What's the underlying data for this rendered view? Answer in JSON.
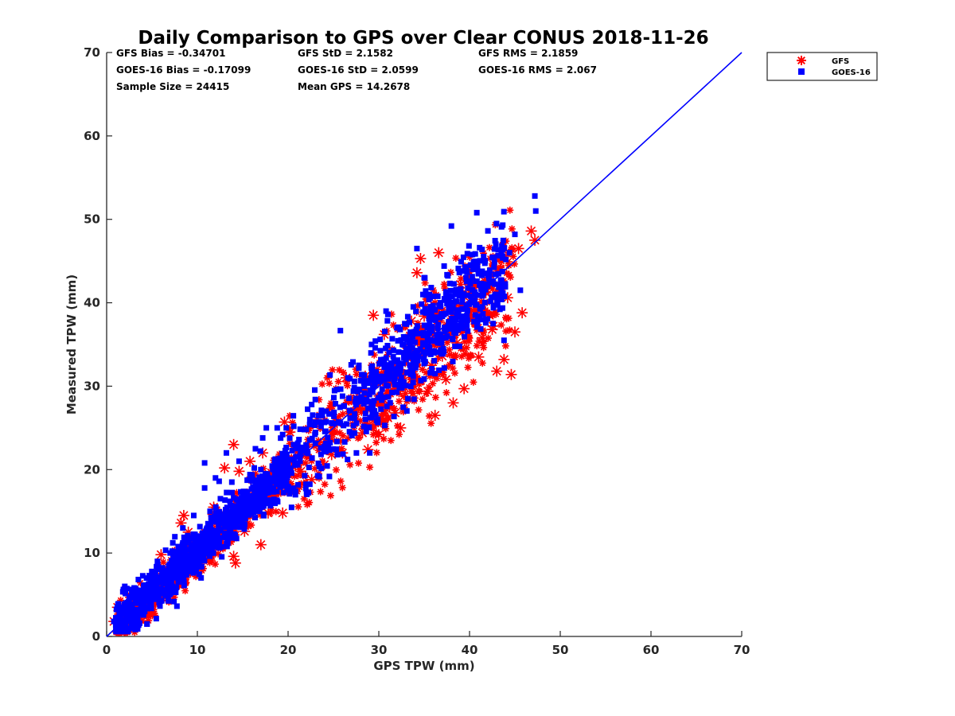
{
  "chart_data": {
    "type": "scatter",
    "title": "Daily Comparison to GPS over Clear CONUS 2018-11-26",
    "xlabel": "GPS TPW (mm)",
    "ylabel": "Measured TPW (mm)",
    "xlim": [
      0,
      70
    ],
    "ylim": [
      0,
      70
    ],
    "xticks": [
      "0",
      "10",
      "20",
      "30",
      "40",
      "50",
      "60",
      "70"
    ],
    "yticks": [
      "0",
      "10",
      "20",
      "30",
      "40",
      "50",
      "60",
      "70"
    ],
    "stats": [
      [
        "GFS Bias = -0.34701",
        "GFS StD = 2.1582",
        "GFS RMS = 2.1859"
      ],
      [
        "GOES-16 Bias = -0.17099",
        "GOES-16 StD = 2.0599",
        "GOES-16 RMS = 2.067"
      ],
      [
        "Sample Size = 24415",
        "Mean GPS = 14.2678"
      ]
    ],
    "legend": {
      "placement": "outside-top-right",
      "entries": [
        {
          "name": "GFS",
          "marker": "asterisk",
          "color": "#ff0000"
        },
        {
          "name": "GOES-16",
          "marker": "square",
          "color": "#0000ff"
        }
      ]
    },
    "reference_line": {
      "name": "one-to-one",
      "x": [
        0,
        70
      ],
      "y": [
        0,
        70
      ],
      "color": "#0000ff"
    },
    "series": [
      {
        "name": "GFS",
        "marker": "asterisk",
        "color": "#ff0000",
        "x": [
          0.8,
          1.2,
          1.6,
          2.1,
          2.6,
          3.2,
          4.0,
          4.8,
          5.5,
          6.0,
          6.8,
          7.5,
          8.2,
          8.5,
          9.0,
          9.6,
          10.4,
          10.8,
          11.2,
          11.8,
          12.4,
          13.0,
          13.6,
          14.0,
          14.2,
          14.6,
          15.2,
          15.8,
          16.4,
          17.0,
          17.2,
          17.8,
          18.4,
          19.0,
          19.6,
          20.2,
          20.8,
          21.4,
          22.0,
          22.6,
          23.2,
          24.0,
          24.8,
          25.4,
          26.0,
          26.4,
          27.0,
          27.6,
          28.2,
          28.8,
          29.4,
          30.0,
          30.6,
          31.2,
          31.8,
          32.4,
          33.0,
          33.6,
          34.2,
          34.6,
          35.0,
          35.4,
          35.8,
          36.2,
          36.6,
          37.0,
          37.4,
          37.8,
          38.2,
          38.6,
          39.0,
          39.4,
          39.8,
          40.2,
          40.6,
          41.0,
          41.4,
          41.8,
          42.2,
          42.6,
          43.0,
          43.4,
          43.8,
          44.2,
          44.6,
          45.0,
          45.4,
          45.8,
          46.8,
          47.2,
          12.8,
          14.0,
          16.6,
          19.4,
          24.0,
          28.5,
          33.5,
          36.5,
          39.0,
          40.5,
          42.5,
          34.5,
          31.0,
          29.8
        ],
        "y": [
          1.8,
          3.5,
          2.0,
          5.5,
          1.8,
          2.4,
          3.8,
          5.0,
          6.0,
          9.8,
          7.2,
          8.8,
          13.6,
          14.5,
          12.5,
          9.0,
          11.0,
          12.5,
          10.2,
          15.5,
          13.2,
          20.2,
          14.6,
          23.0,
          8.8,
          19.8,
          12.6,
          21.0,
          17.0,
          11.0,
          22.0,
          14.8,
          16.4,
          17.5,
          25.7,
          24.5,
          20.5,
          19.8,
          21.8,
          18.8,
          26.0,
          20.6,
          21.8,
          25.6,
          22.0,
          31.0,
          26.8,
          28.5,
          24.4,
          22.4,
          38.5,
          24.2,
          36.2,
          27.5,
          26.8,
          25.0,
          30.2,
          37.8,
          43.6,
          45.3,
          38.4,
          29.4,
          32.5,
          26.5,
          46.0,
          33.6,
          30.8,
          36.0,
          28.0,
          35.2,
          41.4,
          29.7,
          44.0,
          38.5,
          44.6,
          33.5,
          35.8,
          41.2,
          38.5,
          37.2,
          31.8,
          44.0,
          33.2,
          40.6,
          31.4,
          36.5,
          46.5,
          38.8,
          48.6,
          47.5,
          11.8,
          9.6,
          17.6,
          14.8,
          23.0,
          31.2,
          34.0,
          39.2,
          42.2,
          40.0,
          36.8,
          30.6,
          26.2,
          32.0
        ]
      },
      {
        "name": "GOES-16",
        "marker": "square",
        "color": "#0000ff",
        "x": [
          0.8,
          1.4,
          2.0,
          2.6,
          3.2,
          3.8,
          4.4,
          5.0,
          5.6,
          6.2,
          7.0,
          7.8,
          8.4,
          9.0,
          9.6,
          10.2,
          10.8,
          11.4,
          12.0,
          12.6,
          13.2,
          13.8,
          14.0,
          14.6,
          15.2,
          15.8,
          16.4,
          17.0,
          17.6,
          18.2,
          18.8,
          19.4,
          20.0,
          20.6,
          21.2,
          21.8,
          22.4,
          23.0,
          23.6,
          24.2,
          24.8,
          25.4,
          26.0,
          26.6,
          27.2,
          27.8,
          28.4,
          29.0,
          29.6,
          30.2,
          30.8,
          31.4,
          32.0,
          32.6,
          33.2,
          33.8,
          34.4,
          35.0,
          35.6,
          36.2,
          36.8,
          37.4,
          38.0,
          38.6,
          39.2,
          39.8,
          40.4,
          40.8,
          41.4,
          42.0,
          42.6,
          43.2,
          43.8,
          44.4,
          45.0,
          45.6,
          47.2,
          47.3,
          10.8,
          12.4,
          13.6,
          17.2,
          19.8,
          22.6,
          29.2,
          31.0,
          34.2,
          35.6,
          37.2,
          41.8
        ],
        "y": [
          1.8,
          2.6,
          6.0,
          3.0,
          4.2,
          4.0,
          7.0,
          5.2,
          9.0,
          7.5,
          10.0,
          8.5,
          13.0,
          10.4,
          14.5,
          11.8,
          17.8,
          15.0,
          19.0,
          13.6,
          22.0,
          18.5,
          16.6,
          21.0,
          15.8,
          19.4,
          22.5,
          20.0,
          25.0,
          18.8,
          25.0,
          24.2,
          20.6,
          23.0,
          23.6,
          24.8,
          26.0,
          28.4,
          22.6,
          27.0,
          25.6,
          29.6,
          28.8,
          31.0,
          29.4,
          32.5,
          30.0,
          22.0,
          34.6,
          29.0,
          39.0,
          32.4,
          37.0,
          35.0,
          28.5,
          39.5,
          33.6,
          43.0,
          37.5,
          31.5,
          40.0,
          35.8,
          49.2,
          38.4,
          43.8,
          36.6,
          44.0,
          50.8,
          39.5,
          42.0,
          37.5,
          40.8,
          35.5,
          46.0,
          48.2,
          41.5,
          52.8,
          51.0,
          20.8,
          18.6,
          16.2,
          23.8,
          25.0,
          27.8,
          35.0,
          38.6,
          46.5,
          41.0,
          44.4,
          38.0
        ]
      }
    ]
  }
}
